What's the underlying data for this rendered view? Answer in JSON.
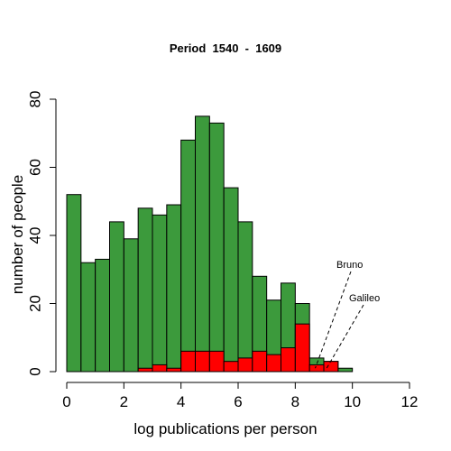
{
  "chart_data": {
    "type": "bar",
    "title": "Period  1540  -  1609",
    "xlabel": "log publications per person",
    "ylabel": "number of people",
    "xlim": [
      0,
      12
    ],
    "ylim": [
      0,
      80
    ],
    "xticks": [
      "0",
      "2",
      "4",
      "6",
      "8",
      "10",
      "12"
    ],
    "yticks": [
      "0",
      "20",
      "40",
      "60",
      "80"
    ],
    "bin_width": 0.5,
    "bin_starts": [
      0,
      0.5,
      1,
      1.5,
      2,
      2.5,
      3,
      3.5,
      4,
      4.5,
      5,
      5.5,
      6,
      6.5,
      7,
      7.5,
      8,
      8.5,
      9,
      9.5
    ],
    "series": [
      {
        "color": "#3c9a3c",
        "values": [
          52,
          32,
          33,
          44,
          39,
          48,
          46,
          49,
          68,
          75,
          73,
          54,
          44,
          28,
          21,
          26,
          20,
          4,
          3,
          1
        ]
      },
      {
        "color": "#ff0000",
        "values": [
          0,
          0,
          0,
          0,
          0,
          1,
          2,
          1,
          6,
          6,
          6,
          3,
          4,
          6,
          5,
          7,
          14,
          2,
          3,
          0
        ]
      }
    ],
    "annotations": [
      {
        "text": "Bruno",
        "x": 8.7,
        "y": 1
      },
      {
        "text": "Galileo",
        "x": 9.1,
        "y": 1
      }
    ],
    "grid": false,
    "legend": "none"
  }
}
